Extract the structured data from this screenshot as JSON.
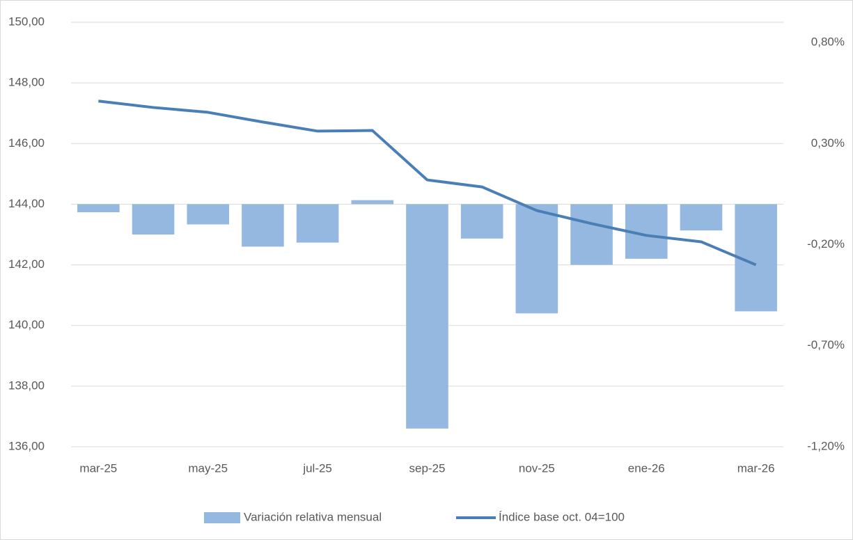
{
  "chart_data": {
    "type": "bar",
    "categories": [
      "mar-25",
      null,
      "may-25",
      null,
      "jul-25",
      null,
      "sep-25",
      null,
      "nov-25",
      null,
      "ene-26",
      null,
      "mar-26"
    ],
    "series": [
      {
        "name": "Variación relativa mensual",
        "type": "bar",
        "axis": "y2",
        "color": "#95b8e0",
        "values": [
          -0.04,
          -0.15,
          -0.1,
          -0.21,
          -0.19,
          0.02,
          -1.11,
          -0.17,
          -0.54,
          -0.3,
          -0.27,
          -0.13,
          -0.53
        ]
      },
      {
        "name": "Índice base oct. 04=100",
        "type": "line",
        "color": "#4a7fb6",
        "values": [
          147.4,
          147.19,
          147.03,
          146.71,
          146.41,
          146.43,
          144.8,
          144.57,
          143.79,
          143.36,
          142.97,
          142.76,
          142.0
        ]
      }
    ],
    "ylim": [
      136,
      150
    ],
    "yticks": [
      {
        "value": 136,
        "label": "136,00"
      },
      {
        "value": 138,
        "label": "138,00"
      },
      {
        "value": 140,
        "label": "140,00"
      },
      {
        "value": 142,
        "label": "142,00"
      },
      {
        "value": 144,
        "label": "144,00"
      },
      {
        "value": 146,
        "label": "146,00"
      },
      {
        "value": 148,
        "label": "148,00"
      },
      {
        "value": 150,
        "label": "150,00"
      }
    ],
    "y2lim": [
      -1.2,
      0.9
    ],
    "y2ticks": [
      {
        "value": -1.2,
        "label": "-1,20%"
      },
      {
        "value": -0.7,
        "label": "-0,70%"
      },
      {
        "value": -0.2,
        "label": "-0,20%"
      },
      {
        "value": 0.3,
        "label": "0,30%"
      },
      {
        "value": 0.8,
        "label": "0,80%"
      }
    ],
    "grid": true,
    "legend": "bottom"
  }
}
